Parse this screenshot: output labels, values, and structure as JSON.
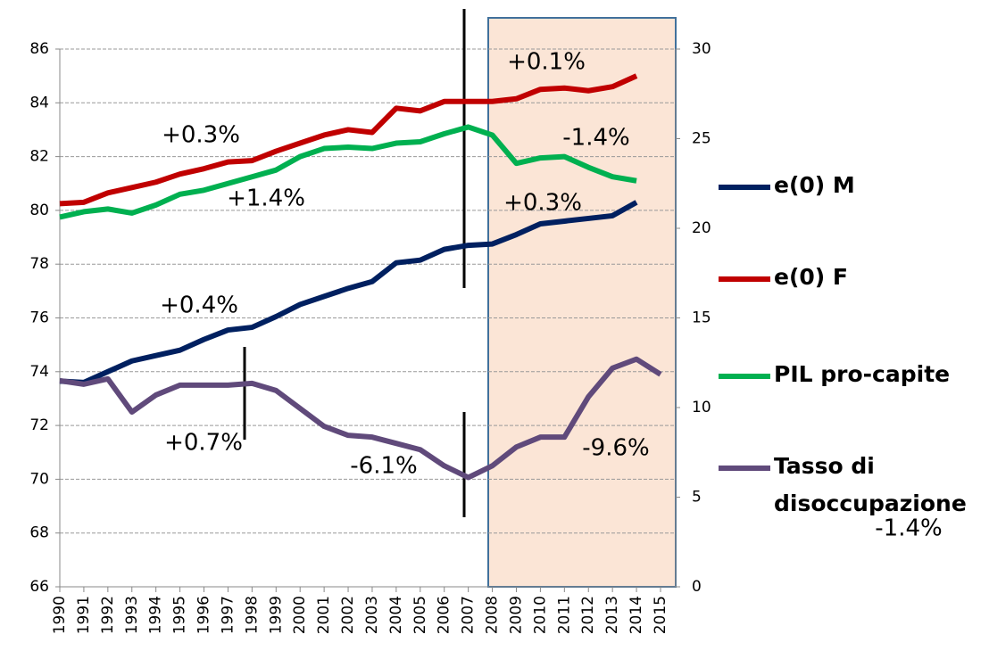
{
  "chart_data": {
    "type": "line",
    "categories": [
      "1990",
      "1991",
      "1992",
      "1993",
      "1994",
      "1995",
      "1996",
      "1997",
      "1998",
      "1999",
      "2000",
      "2001",
      "2002",
      "2003",
      "2004",
      "2005",
      "2006",
      "2007",
      "2008",
      "2009",
      "2010",
      "2011",
      "2012",
      "2013",
      "2014",
      "2015"
    ],
    "series": [
      {
        "name": "e(0) M",
        "color": "#002060",
        "values": [
          73.65,
          73.6,
          74.0,
          74.4,
          74.6,
          74.8,
          75.2,
          75.55,
          75.65,
          76.05,
          76.5,
          76.8,
          77.1,
          77.35,
          78.05,
          78.15,
          78.55,
          78.7,
          78.75,
          79.1,
          79.5,
          79.6,
          79.7,
          79.8,
          80.3,
          null
        ]
      },
      {
        "name": "e(0) F",
        "color": "#c00000",
        "values": [
          80.25,
          80.3,
          80.65,
          80.85,
          81.05,
          81.35,
          81.55,
          81.8,
          81.85,
          82.2,
          82.5,
          82.8,
          83.0,
          82.9,
          83.8,
          83.7,
          84.05,
          84.05,
          84.05,
          84.15,
          84.5,
          84.55,
          84.45,
          84.6,
          85.0,
          null
        ]
      },
      {
        "name": "PIL pro-capite",
        "color": "#00b050",
        "values": [
          79.75,
          79.95,
          80.05,
          79.9,
          80.2,
          80.6,
          80.75,
          81.0,
          81.25,
          81.5,
          82.0,
          82.3,
          82.35,
          82.3,
          82.5,
          82.55,
          82.85,
          83.1,
          82.8,
          81.75,
          81.95,
          82.0,
          81.6,
          81.25,
          81.1,
          null
        ]
      },
      {
        "name": "Tasso di disoccupazione",
        "color": "#604a7b",
        "axis": "y2",
        "values": [
          11.5,
          11.3,
          11.6,
          9.75,
          10.7,
          11.25,
          11.25,
          11.25,
          11.35,
          10.95,
          9.95,
          8.95,
          8.45,
          8.35,
          8.0,
          7.65,
          6.75,
          6.1,
          6.75,
          7.8,
          8.35,
          8.35,
          10.6,
          12.2,
          12.7,
          11.85
        ]
      }
    ],
    "annotations": [
      "+0.1%",
      "+0.3%",
      "-1.4%",
      "+1.4%",
      "+0.3%",
      "+0.4%",
      "+0.7%",
      "-6.1%",
      "-9.6%",
      "-1.4%"
    ],
    "ylim": [
      66,
      86
    ],
    "yticks": [
      66,
      68,
      70,
      72,
      74,
      76,
      78,
      80,
      82,
      84,
      86
    ],
    "y2lim": [
      0,
      30
    ],
    "y2ticks": [
      0,
      5,
      10,
      15,
      20,
      25,
      30
    ],
    "grid": true
  }
}
